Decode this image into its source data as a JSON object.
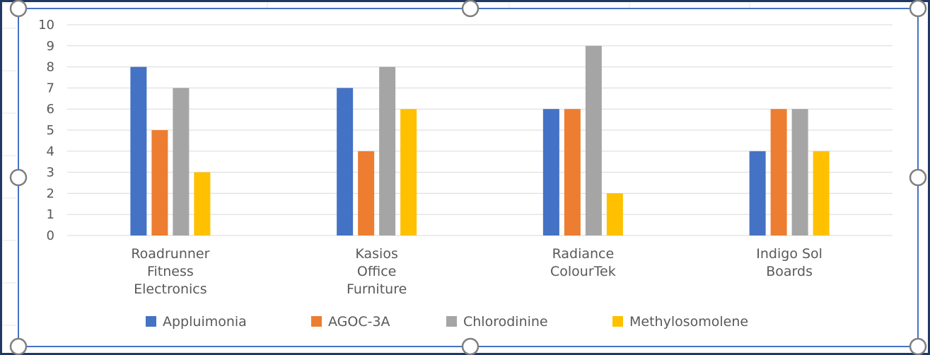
{
  "chart_data": {
    "type": "bar",
    "title": "",
    "xlabel": "",
    "ylabel": "",
    "ylim": [
      0,
      10
    ],
    "yticks": [
      0,
      1,
      2,
      3,
      4,
      5,
      6,
      7,
      8,
      9,
      10
    ],
    "grid": true,
    "legend_position": "bottom",
    "categories": [
      [
        "Roadrunner",
        "Fitness",
        "Electronics"
      ],
      [
        "Kasios",
        "Office",
        "Furniture"
      ],
      [
        "Radiance",
        "ColourTek"
      ],
      [
        "Indigo Sol",
        "Boards"
      ]
    ],
    "series": [
      {
        "name": "Appluimonia",
        "color": "#4472C4",
        "values": [
          8,
          7,
          6,
          4
        ]
      },
      {
        "name": "AGOC-3A",
        "color": "#ED7D31",
        "values": [
          5,
          4,
          6,
          6
        ]
      },
      {
        "name": "Chlorodinine",
        "color": "#A5A5A5",
        "values": [
          7,
          8,
          9,
          6
        ]
      },
      {
        "name": "Methylosomolene",
        "color": "#FFC000",
        "values": [
          3,
          6,
          2,
          4
        ]
      }
    ]
  },
  "colors": {
    "gridline": "#D9D9D9",
    "text": "#595959",
    "selection_frame": "#4472C4",
    "outer_border": "#1F3864"
  }
}
